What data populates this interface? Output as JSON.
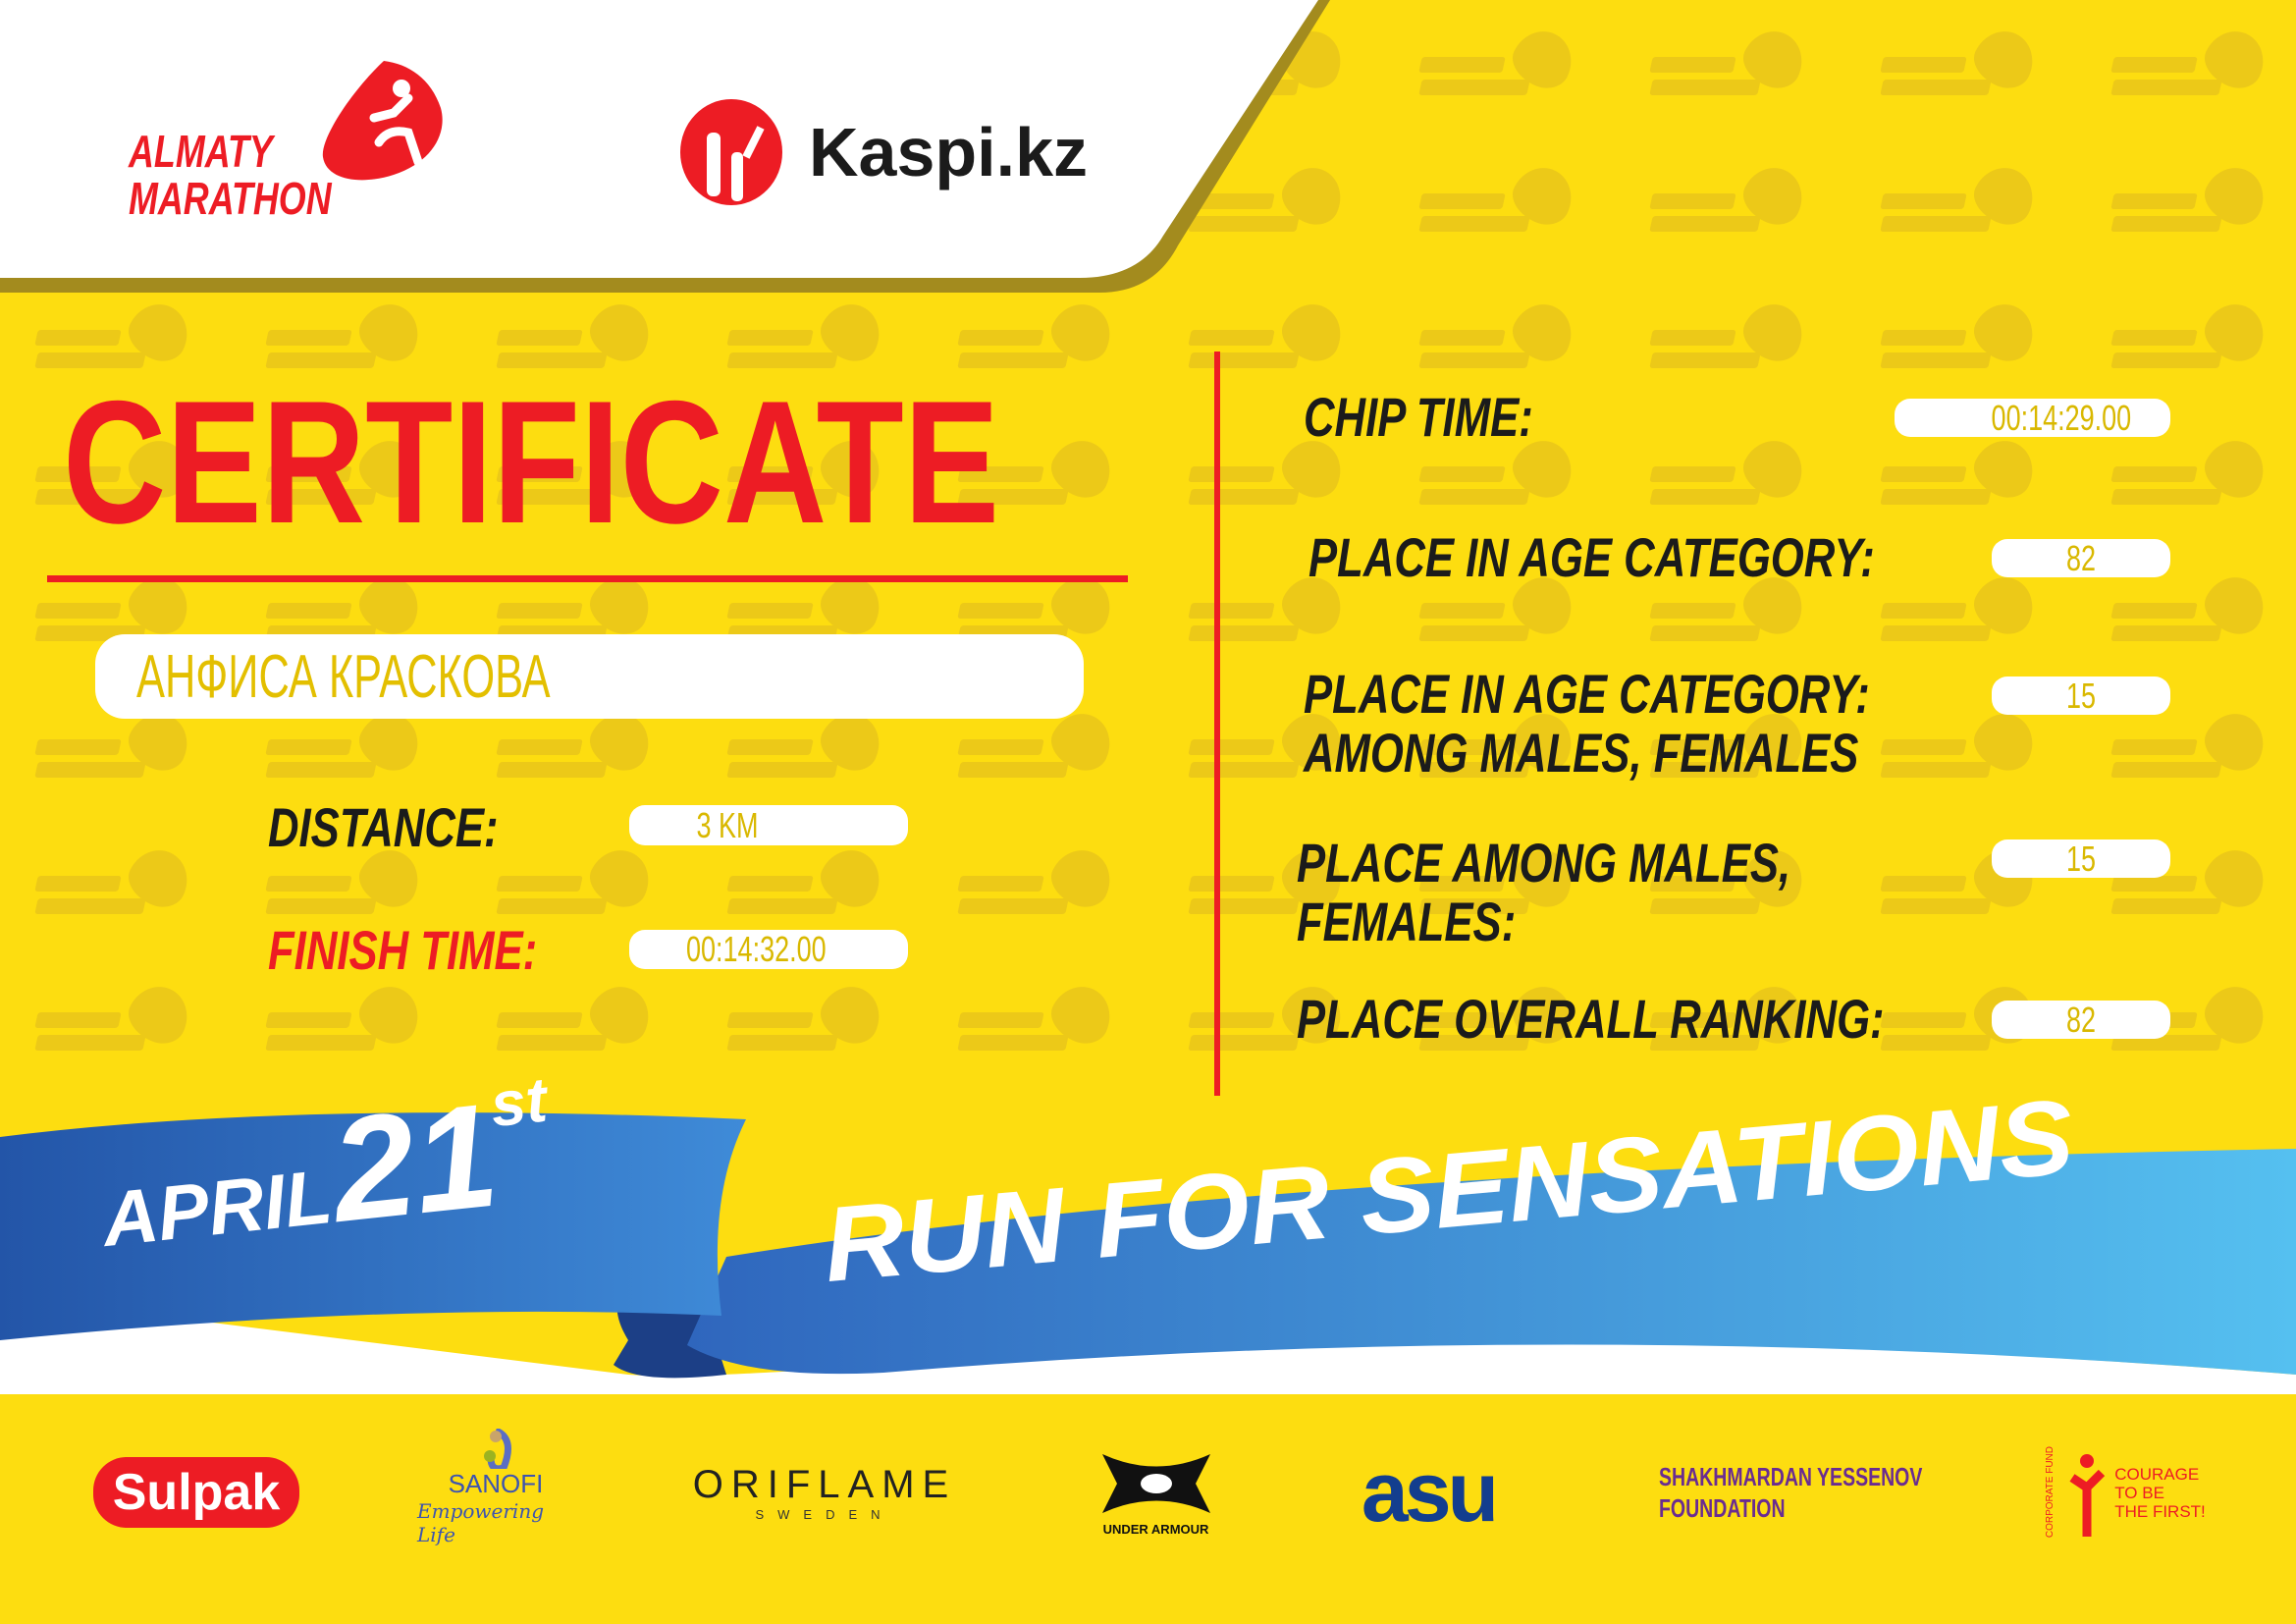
{
  "watermark": "ALMATY MARATHON",
  "header": {
    "logo_line1": "ALMATY",
    "logo_line2": "MARATHON",
    "sponsor": "Kaspi.kz"
  },
  "title": "CERTIFICATE",
  "participant": {
    "name": "АНФИСА КРАСКОВА"
  },
  "left": {
    "distance_label": "DISTANCE:",
    "distance_value": "3 KM",
    "finish_label": "FINISH TIME:",
    "finish_value": "00:14:32.00"
  },
  "right": {
    "chip_label": "CHIP TIME:",
    "chip_value": "00:14:29.00",
    "age_label": "PLACE IN AGE CATEGORY:",
    "age_value": "82",
    "age_sex_label1": "PLACE IN AGE CATEGORY:",
    "age_sex_label2": "AMONG MALES, FEMALES",
    "age_sex_value": "15",
    "sex_label1": "PLACE AMONG MALES,",
    "sex_label2": "FEMALES:",
    "sex_value": "15",
    "overall_label": "PLACE OVERALL RANKING:",
    "overall_value": "82"
  },
  "ribbon": {
    "month": "APRIL",
    "day": "21",
    "suffix": "st",
    "slogan": "RUN FOR SENSATIONS"
  },
  "sponsors": {
    "sulpak": "Sulpak",
    "sanofi": "SANOFI",
    "sanofi_tag": "Empowering Life",
    "oriflame": "ORIFLAME",
    "oriflame_sub": "SWEDEN",
    "ua": "UNDER ARMOUR",
    "asu": "asu",
    "yessenov1": "SHAKHMARDAN YESSENOV",
    "yessenov2": "FOUNDATION",
    "courage1": "COURAGE",
    "courage2": "TO BE",
    "courage3": "THE FIRST!",
    "courage_arc": "CORPORATE FUND"
  },
  "colors": {
    "yellow": "#fddd10",
    "red": "#ed1c24",
    "blue": "#2f6fc0",
    "olive": "#a38b1e"
  }
}
